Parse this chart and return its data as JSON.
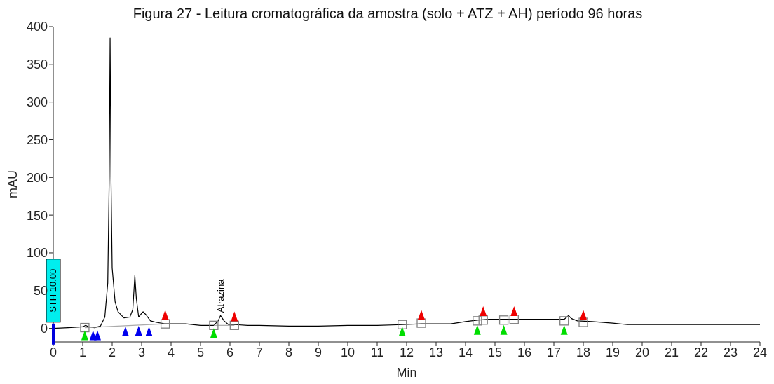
{
  "chart_data": {
    "type": "line",
    "title": "Figura 27 - Leitura cromatográfica da amostra (solo + ATZ + AH) período 96 horas",
    "xlabel": "Min",
    "ylabel": "mAU",
    "xlim": [
      0,
      24
    ],
    "xticks": [
      0,
      1,
      2,
      3,
      4,
      5,
      6,
      7,
      8,
      9,
      10,
      11,
      12,
      13,
      14,
      15,
      16,
      17,
      18,
      19,
      20,
      21,
      22,
      23,
      24
    ],
    "ylim": [
      -18,
      400
    ],
    "yticks": [
      0,
      50,
      100,
      150,
      200,
      250,
      300,
      350,
      400
    ],
    "grid": false,
    "legend": false,
    "annotations": [
      {
        "text": "Atrazina",
        "x": 5.68,
        "y": 17
      },
      "STH 10.00"
    ],
    "series": [
      {
        "color": "#000000",
        "marker": "none",
        "x": [
          0,
          0.5,
          1.0,
          1.1,
          1.2,
          1.4,
          1.6,
          1.75,
          1.85,
          1.9,
          1.93,
          1.96,
          2.0,
          2.1,
          2.2,
          2.4,
          2.6,
          2.7,
          2.77,
          2.82,
          2.9,
          3.0,
          3.05,
          3.15,
          3.3,
          3.5,
          3.8,
          4.5,
          5.0,
          5.45,
          5.6,
          5.68,
          5.8,
          5.95,
          6.2,
          6.6,
          7.0,
          8.0,
          9.0,
          10.0,
          11.0,
          11.85,
          12.5,
          13.5,
          14.0,
          14.4,
          14.8,
          15.5,
          16.5,
          17.35,
          17.5,
          17.6,
          17.8,
          18.3,
          19.0,
          19.5,
          20.5,
          24
        ],
        "values": [
          0,
          1,
          2,
          4,
          2,
          1,
          3,
          15,
          60,
          200,
          385,
          200,
          80,
          35,
          22,
          14,
          15,
          25,
          70,
          40,
          15,
          20,
          22,
          18,
          10,
          8,
          6,
          6,
          4,
          4,
          10,
          17,
          10,
          5,
          5,
          4,
          4,
          3,
          3,
          4,
          4,
          5,
          6,
          6,
          9,
          11,
          12,
          12,
          12,
          12,
          17,
          13,
          10,
          9,
          7,
          5,
          5,
          5
        ]
      },
      {
        "type": "line",
        "color": "#aaaaaa",
        "marker": "none",
        "x": [
          1.07,
          3.8
        ],
        "values": [
          1,
          6
        ]
      },
      {
        "type": "line",
        "color": "#aaaaaa",
        "marker": "none",
        "x": [
          5.45,
          6.15
        ],
        "values": [
          4,
          4
        ]
      },
      {
        "type": "scatter",
        "color": "#808080",
        "marker": "square",
        "x": [
          1.07,
          3.8,
          5.45,
          6.15,
          11.85,
          12.5,
          14.4,
          14.6,
          15.3,
          15.65,
          17.35,
          18.0
        ],
        "values": [
          1,
          6,
          4,
          4,
          5,
          7,
          10,
          11,
          11,
          12,
          10,
          8
        ]
      },
      {
        "type": "scatter",
        "color": "#00dd00",
        "marker": "triangle",
        "x": [
          1.07,
          5.45,
          11.85,
          14.4,
          15.3,
          17.35
        ],
        "values": [
          -10,
          -7,
          -5,
          -3,
          -3,
          -3
        ]
      },
      {
        "type": "scatter",
        "color": "#0000ee",
        "marker": "triangle",
        "x": [
          1.35,
          1.5,
          2.45,
          2.9,
          3.25
        ],
        "values": [
          -10,
          -10,
          -5,
          -4,
          -5
        ]
      },
      {
        "type": "scatter",
        "color": "#ee0000",
        "marker": "triangle",
        "x": [
          3.8,
          6.15,
          12.5,
          14.6,
          15.65,
          18.0
        ],
        "values": [
          17,
          15,
          17,
          22,
          22,
          17
        ]
      }
    ]
  }
}
